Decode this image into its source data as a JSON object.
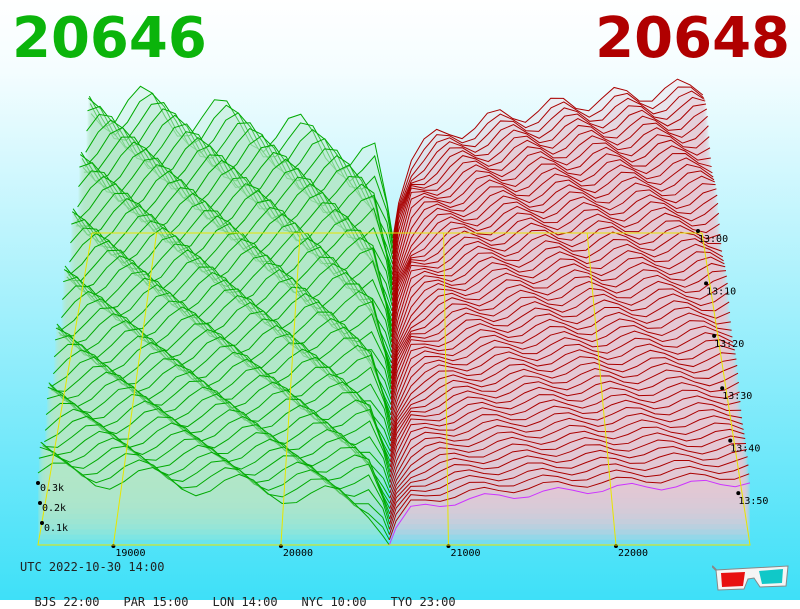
{
  "header": {
    "bid_price": "20646",
    "ask_price": "20648",
    "bid_color": "#0bb40b",
    "ask_color": "#b00000"
  },
  "footer": {
    "utc": "UTC 2022-10-30 14:00",
    "cities": [
      "BJS 22:00",
      "PAR 15:00",
      "LON 14:00",
      "NYC 10:00",
      "TYO 23:00"
    ]
  },
  "chart_data": {
    "type": "area",
    "description_kind": "3d order book depth surface",
    "x_axis": {
      "ticks": [
        19000,
        20000,
        21000,
        22000
      ],
      "labels": [
        "19000",
        "20000",
        "21000",
        "22000"
      ],
      "range": [
        18550,
        22800
      ],
      "mid_price": 20647
    },
    "y_axis": {
      "ticks": [
        100,
        200,
        300
      ],
      "labels": [
        "0.1k",
        "0.2k",
        "0.3k"
      ]
    },
    "time_axis": {
      "labels": [
        "13:00",
        "13:10",
        "13:20",
        "13:30",
        "13:40",
        "13:50"
      ]
    },
    "series": [
      {
        "name": "bids",
        "color": "#00aa00",
        "side": "left"
      },
      {
        "name": "asks",
        "color": "#aa0000",
        "side": "right"
      }
    ],
    "grid_color": "#e6e600",
    "background_top": "#ffffff",
    "background_bottom": "#3ee0f8",
    "latest_ask_color": "#cc33ff",
    "glasses_icon": "3d-glasses-icon"
  }
}
